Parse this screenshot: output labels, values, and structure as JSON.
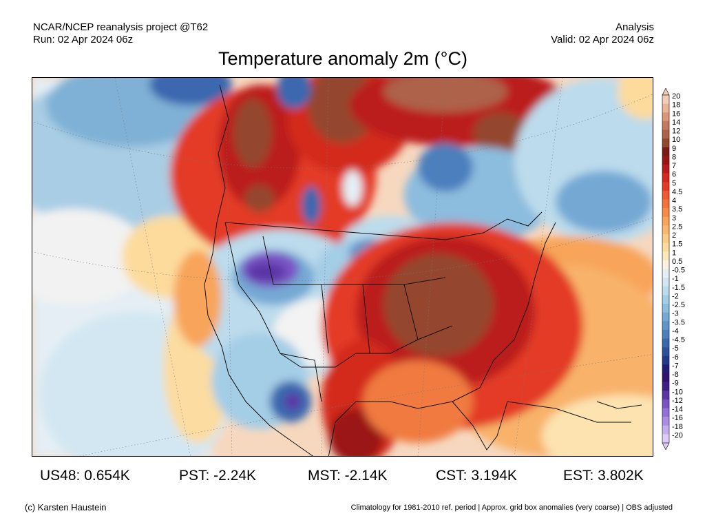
{
  "header": {
    "source": "NCAR/NCEP reanalysis project @T62",
    "run": "Run: 02 Apr 2024 06z",
    "product": "Analysis",
    "valid": "Valid: 02 Apr 2024 06z"
  },
  "title": "Temperature anomaly 2m (°C)",
  "colorbar": {
    "labels": [
      "20",
      "18",
      "16",
      "14",
      "12",
      "10",
      "9",
      "8",
      "7",
      "6",
      "5",
      "4.5",
      "4",
      "3.5",
      "3",
      "2.5",
      "2",
      "1.5",
      "1",
      "0.5",
      "-0.5",
      "-1",
      "-1.5",
      "-2",
      "-2.5",
      "-3",
      "-3.5",
      "-4",
      "-4.5",
      "-5",
      "-6",
      "-7",
      "-8",
      "-9",
      "-10",
      "-12",
      "-14",
      "-16",
      "-18",
      "-20"
    ],
    "colors": [
      "#f4cdb8",
      "#e9b49a",
      "#d9967a",
      "#c47a5e",
      "#ad624a",
      "#94472f",
      "#7a1a14",
      "#9b1414",
      "#bb1a1a",
      "#d3291f",
      "#e33b28",
      "#ef5a32",
      "#f3733b",
      "#f68b48",
      "#f8a45a",
      "#fab86e",
      "#fbcb84",
      "#fcdb9d",
      "#fce8bf",
      "#fbf3df",
      "#e5f0f6",
      "#d1e6f2",
      "#bcdbec",
      "#a4cde6",
      "#8cbcde",
      "#75a9d4",
      "#5f95ca",
      "#4b7fbd",
      "#3a68ae",
      "#2d519c",
      "#23398a",
      "#241c78",
      "#30156f",
      "#3f1f85",
      "#5b34a6",
      "#7a52c4",
      "#9370d6",
      "#ab8ee3",
      "#c4aeee",
      "#dcccf7"
    ]
  },
  "stats": [
    {
      "label": "US48: 0.654K"
    },
    {
      "label": "PST: -2.24K"
    },
    {
      "label": "MST: -2.14K"
    },
    {
      "label": "CST: 3.194K"
    },
    {
      "label": "EST: 3.802K"
    }
  ],
  "footer": {
    "credit": "(c) Karsten Haustein",
    "note": "Climatology for 1981-2010 ref. period | Approx. grid box anomalies (very coarse) | OBS adjusted"
  }
}
